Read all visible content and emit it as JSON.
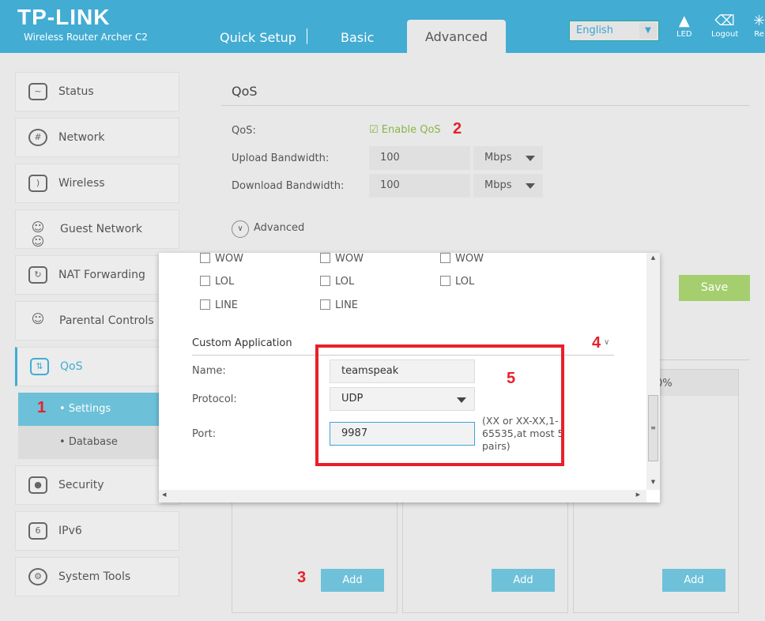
{
  "header": {
    "logo": "TP-LINK",
    "model": "Wireless Router Archer C2",
    "tabs": [
      "Quick Setup",
      "Basic",
      "Advanced"
    ],
    "active_tab": "Advanced",
    "language": "English",
    "icons": [
      {
        "name": "led-icon",
        "label": "LED"
      },
      {
        "name": "logout-icon",
        "label": "Logout"
      },
      {
        "name": "reboot-icon",
        "label": "Re"
      }
    ]
  },
  "sidebar": {
    "items": [
      {
        "label": "Status",
        "icon": "status-icon"
      },
      {
        "label": "Network",
        "icon": "globe-icon"
      },
      {
        "label": "Wireless",
        "icon": "wifi-icon"
      },
      {
        "label": "Guest Network",
        "icon": "guests-icon"
      },
      {
        "label": "NAT Forwarding",
        "icon": "refresh-icon"
      },
      {
        "label": "Parental Controls",
        "icon": "family-icon"
      },
      {
        "label": "QoS",
        "icon": "qos-icon"
      },
      {
        "label": "Security",
        "icon": "lock-icon"
      },
      {
        "label": "IPv6",
        "icon": "ipv6-icon"
      },
      {
        "label": "System Tools",
        "icon": "gear-icon"
      }
    ],
    "active": "QoS",
    "sub_items": [
      "Settings",
      "Database"
    ],
    "active_sub": "Settings"
  },
  "main": {
    "title": "QoS",
    "qos_label": "QoS:",
    "enable_label": "Enable QoS",
    "enabled": true,
    "upload_label": "Upload Bandwidth:",
    "upload_value": "100",
    "upload_unit": "Mbps",
    "download_label": "Download Bandwidth:",
    "download_value": "100",
    "download_unit": "Mbps",
    "advanced_label": "Advanced",
    "save_label": "Save",
    "col_header_partial": "0%",
    "add_label": "Add",
    "accent": "#42acd3",
    "save_color": "#a5ce6e"
  },
  "dialog": {
    "apps": [
      [
        "WOW",
        "WOW",
        "WOW"
      ],
      [
        "LOL",
        "LOL",
        "LOL"
      ],
      [
        "LINE",
        "LINE"
      ]
    ],
    "custom_title": "Custom Application",
    "name_label": "Name:",
    "name_value": "teamspeak",
    "protocol_label": "Protocol:",
    "protocol_value": "UDP",
    "port_label": "Port:",
    "port_value": "9987",
    "port_hint": "(XX or XX-XX,1-65535,at most 5 pairs)"
  },
  "annotations": [
    "1",
    "2",
    "3",
    "4",
    "5"
  ],
  "annotation_color": "#e8202a"
}
